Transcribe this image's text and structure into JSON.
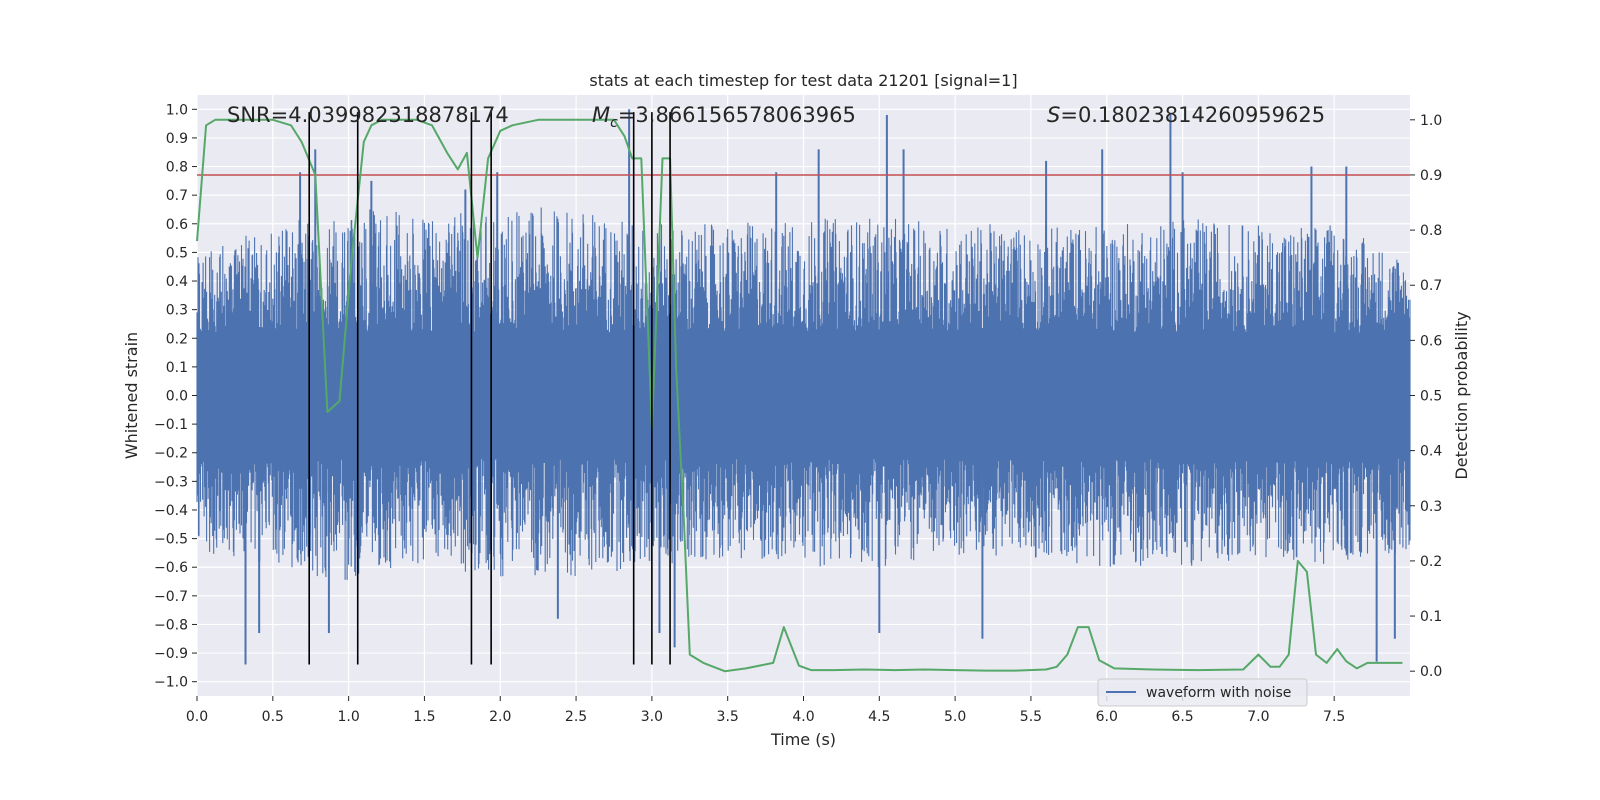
{
  "chart_data": {
    "type": "line",
    "title": "stats at each timestep for test data 21201 [signal=1]",
    "xlabel": "Time (s)",
    "ylabel": "Whitened strain",
    "y2label": "Detection probability",
    "xlim": [
      0.0,
      8.0
    ],
    "ylim": [
      -1.05,
      1.05
    ],
    "y2lim": [
      -0.045,
      1.045
    ],
    "xticks": [
      0.0,
      0.5,
      1.0,
      1.5,
      2.0,
      2.5,
      3.0,
      3.5,
      4.0,
      4.5,
      5.0,
      5.5,
      6.0,
      6.5,
      7.0,
      7.5
    ],
    "xtick_labels": [
      "0.0",
      "0.5",
      "1.0",
      "1.5",
      "2.0",
      "2.5",
      "3.0",
      "3.5",
      "4.0",
      "4.5",
      "5.0",
      "5.5",
      "6.0",
      "6.5",
      "7.0",
      "7.5"
    ],
    "yticks": [
      -1.0,
      -0.9,
      -0.8,
      -0.7,
      -0.6,
      -0.5,
      -0.4,
      -0.3,
      -0.2,
      -0.1,
      0.0,
      0.1,
      0.2,
      0.3,
      0.4,
      0.5,
      0.6,
      0.7,
      0.8,
      0.9,
      1.0
    ],
    "ytick_labels": [
      "−1.0",
      "−0.9",
      "−0.8",
      "−0.7",
      "−0.6",
      "−0.5",
      "−0.4",
      "−0.3",
      "−0.2",
      "−0.1",
      "0.0",
      "0.1",
      "0.2",
      "0.3",
      "0.4",
      "0.5",
      "0.6",
      "0.7",
      "0.8",
      "0.9",
      "1.0"
    ],
    "y2ticks": [
      0.0,
      0.1,
      0.2,
      0.3,
      0.4,
      0.5,
      0.6,
      0.7,
      0.8,
      0.9,
      1.0
    ],
    "y2tick_labels": [
      "0.0",
      "0.1",
      "0.2",
      "0.3",
      "0.4",
      "0.5",
      "0.6",
      "0.7",
      "0.8",
      "0.9",
      "1.0"
    ],
    "grid": true,
    "legend": {
      "entries": [
        "waveform with noise"
      ],
      "placement": "lower-right"
    },
    "annotations": {
      "snr": "SNR=4.039982318878174",
      "mc_symbol": "M",
      "mc_sub": "c",
      "mc_value": "=3.866156578063965",
      "s_symbol": "S",
      "s_value": "=0.18023814260959625"
    },
    "threshold": {
      "axis": "right",
      "value": 0.9
    },
    "vertical_lines_x": [
      0.74,
      1.06,
      1.81,
      1.94,
      2.88,
      3.0,
      3.12
    ],
    "waveform_envelope": {
      "x": [
        0.0,
        0.5,
        1.0,
        1.5,
        2.0,
        2.5,
        3.0,
        3.5,
        4.0,
        4.5,
        5.0,
        5.5,
        6.0,
        6.5,
        7.0,
        7.5,
        8.0
      ],
      "upper": [
        0.45,
        0.55,
        0.6,
        0.58,
        0.6,
        0.6,
        0.55,
        0.55,
        0.57,
        0.57,
        0.55,
        0.55,
        0.55,
        0.57,
        0.55,
        0.55,
        0.45
      ],
      "lower": [
        -0.5,
        -0.55,
        -0.6,
        -0.55,
        -0.58,
        -0.58,
        -0.55,
        -0.52,
        -0.55,
        -0.55,
        -0.52,
        -0.52,
        -0.55,
        -0.55,
        -0.52,
        -0.55,
        -0.5
      ],
      "spikes": [
        {
          "x": 0.32,
          "y": -0.94
        },
        {
          "x": 0.41,
          "y": -0.83
        },
        {
          "x": 0.68,
          "y": 0.78
        },
        {
          "x": 0.78,
          "y": 0.86
        },
        {
          "x": 0.87,
          "y": -0.83
        },
        {
          "x": 1.15,
          "y": 0.75
        },
        {
          "x": 1.77,
          "y": 0.72
        },
        {
          "x": 1.98,
          "y": 0.78
        },
        {
          "x": 2.38,
          "y": -0.78
        },
        {
          "x": 2.85,
          "y": 1.0
        },
        {
          "x": 3.05,
          "y": -0.83
        },
        {
          "x": 3.15,
          "y": -0.88
        },
        {
          "x": 3.82,
          "y": 0.78
        },
        {
          "x": 4.1,
          "y": 0.86
        },
        {
          "x": 4.5,
          "y": -0.83
        },
        {
          "x": 4.55,
          "y": 0.98
        },
        {
          "x": 4.66,
          "y": 0.86
        },
        {
          "x": 5.18,
          "y": -0.85
        },
        {
          "x": 5.6,
          "y": 0.82
        },
        {
          "x": 5.97,
          "y": 0.86
        },
        {
          "x": 6.42,
          "y": 0.98
        },
        {
          "x": 6.5,
          "y": 0.78
        },
        {
          "x": 7.35,
          "y": 0.8
        },
        {
          "x": 7.58,
          "y": 0.8
        },
        {
          "x": 7.78,
          "y": -0.93
        },
        {
          "x": 7.9,
          "y": -0.85
        }
      ]
    },
    "series": [
      {
        "name": "waveform with noise",
        "axis": "left",
        "color": "#4c72b0",
        "style": "dense-noise"
      },
      {
        "axis": "right",
        "color": "#55a868",
        "x": [
          0.0,
          0.06,
          0.12,
          0.25,
          0.5,
          0.62,
          0.69,
          0.78,
          0.86,
          0.94,
          1.02,
          1.1,
          1.15,
          1.22,
          1.3,
          1.45,
          1.55,
          1.65,
          1.72,
          1.78,
          1.85,
          1.92,
          2.0,
          2.08,
          2.25,
          2.5,
          2.75,
          2.82,
          2.87,
          2.93,
          3.0,
          3.07,
          3.12,
          3.16,
          3.21,
          3.25,
          3.34,
          3.48,
          3.62,
          3.8,
          3.87,
          3.97,
          4.05,
          4.2,
          4.4,
          4.6,
          4.8,
          5.0,
          5.2,
          5.4,
          5.6,
          5.67,
          5.74,
          5.81,
          5.88,
          5.95,
          6.05,
          6.3,
          6.6,
          6.9,
          7.0,
          7.08,
          7.14,
          7.2,
          7.26,
          7.32,
          7.38,
          7.45,
          7.52,
          7.58,
          7.65,
          7.72,
          7.8,
          7.88,
          7.95
        ],
        "y": [
          0.78,
          0.99,
          1.0,
          1.0,
          1.0,
          0.99,
          0.96,
          0.9,
          0.47,
          0.49,
          0.75,
          0.96,
          0.99,
          1.0,
          1.0,
          1.0,
          0.99,
          0.94,
          0.91,
          0.94,
          0.75,
          0.93,
          0.98,
          0.99,
          1.0,
          1.0,
          1.0,
          0.97,
          0.93,
          0.93,
          0.44,
          0.93,
          0.93,
          0.55,
          0.28,
          0.03,
          0.015,
          0.0,
          0.005,
          0.015,
          0.08,
          0.01,
          0.002,
          0.002,
          0.003,
          0.002,
          0.003,
          0.002,
          0.001,
          0.001,
          0.003,
          0.008,
          0.03,
          0.08,
          0.08,
          0.02,
          0.005,
          0.003,
          0.002,
          0.003,
          0.03,
          0.008,
          0.008,
          0.03,
          0.2,
          0.18,
          0.03,
          0.015,
          0.04,
          0.018,
          0.005,
          0.015,
          0.015,
          0.015,
          0.015
        ]
      }
    ]
  }
}
